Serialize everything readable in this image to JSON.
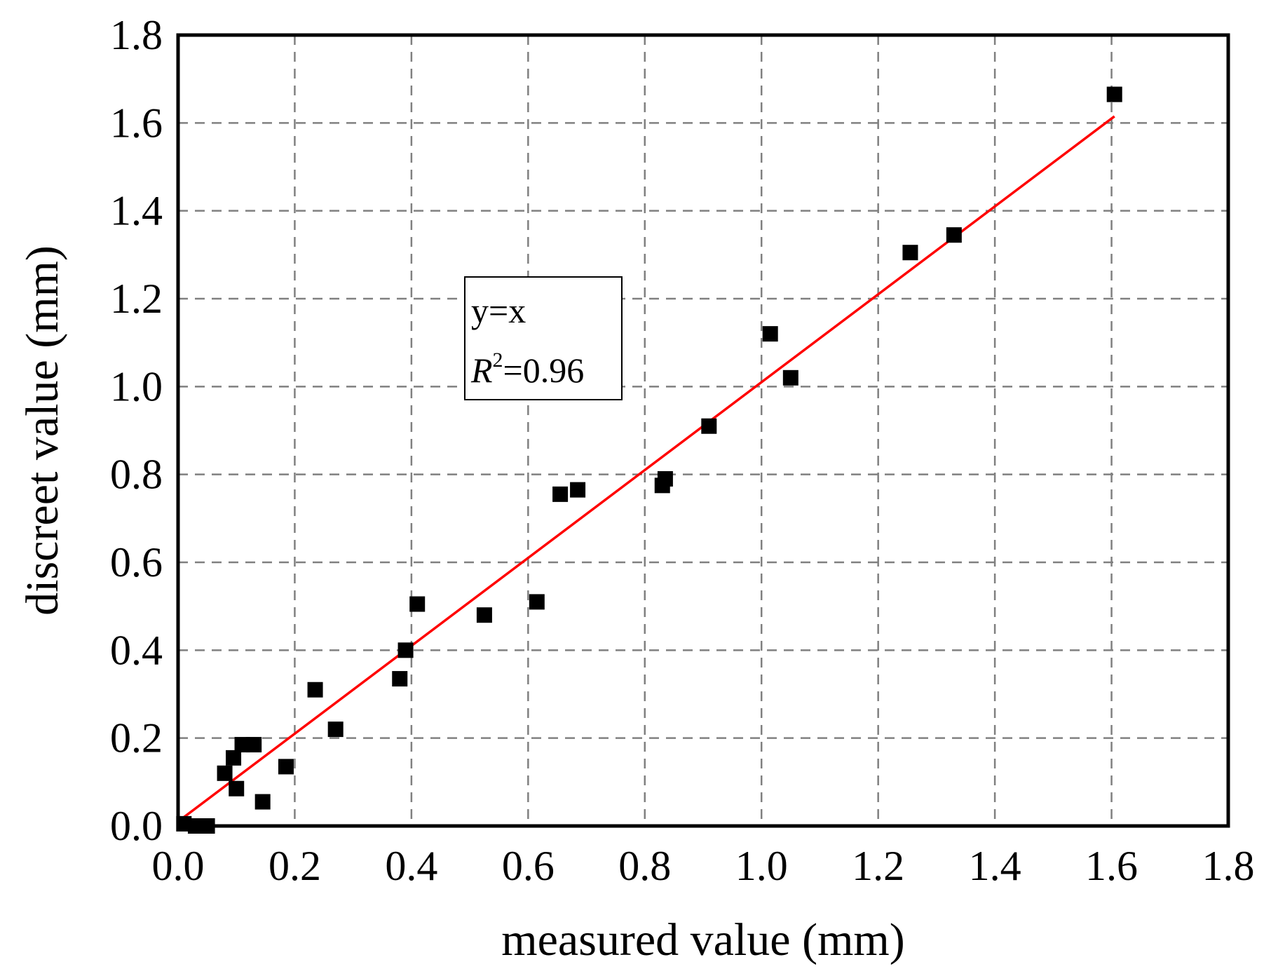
{
  "chart_data": {
    "type": "scatter",
    "title": "",
    "xlabel": "measured value (mm)",
    "ylabel": "discreet value (mm)",
    "xlim": [
      0.0,
      1.8
    ],
    "ylim": [
      0.0,
      1.8
    ],
    "xticks": [
      "0.0",
      "0.2",
      "0.4",
      "0.6",
      "0.8",
      "1.0",
      "1.2",
      "1.4",
      "1.6",
      "1.8"
    ],
    "yticks": [
      "0.0",
      "0.2",
      "0.4",
      "0.6",
      "0.8",
      "1.0",
      "1.2",
      "1.4",
      "1.6",
      "1.8"
    ],
    "grid": true,
    "grid_style": "dashed",
    "point_color": "#000000",
    "fit_color": "#ff0000",
    "series": [
      {
        "marker": "square",
        "points": [
          {
            "x": 0.01,
            "y": 0.005
          },
          {
            "x": 0.03,
            "y": 0.0
          },
          {
            "x": 0.05,
            "y": 0.0
          },
          {
            "x": 0.08,
            "y": 0.12
          },
          {
            "x": 0.095,
            "y": 0.155
          },
          {
            "x": 0.1,
            "y": 0.085
          },
          {
            "x": 0.11,
            "y": 0.185
          },
          {
            "x": 0.13,
            "y": 0.185
          },
          {
            "x": 0.145,
            "y": 0.055
          },
          {
            "x": 0.185,
            "y": 0.135
          },
          {
            "x": 0.235,
            "y": 0.31
          },
          {
            "x": 0.27,
            "y": 0.22
          },
          {
            "x": 0.38,
            "y": 0.335
          },
          {
            "x": 0.39,
            "y": 0.4
          },
          {
            "x": 0.41,
            "y": 0.505
          },
          {
            "x": 0.525,
            "y": 0.48
          },
          {
            "x": 0.615,
            "y": 0.51
          },
          {
            "x": 0.655,
            "y": 0.755
          },
          {
            "x": 0.685,
            "y": 0.765
          },
          {
            "x": 0.83,
            "y": 0.775
          },
          {
            "x": 0.835,
            "y": 0.79
          },
          {
            "x": 0.91,
            "y": 0.91
          },
          {
            "x": 1.015,
            "y": 1.12
          },
          {
            "x": 1.05,
            "y": 1.02
          },
          {
            "x": 1.255,
            "y": 1.305
          },
          {
            "x": 1.33,
            "y": 1.345
          },
          {
            "x": 1.605,
            "y": 1.665
          }
        ]
      }
    ],
    "fit_line": {
      "equation": "y=x",
      "from": [
        0.0,
        0.01
      ],
      "to": [
        1.605,
        1.615
      ]
    },
    "annotation": {
      "line1": "y=x",
      "r_symbol": "R",
      "r_exponent": "2",
      "r_value": "=0.96"
    }
  }
}
